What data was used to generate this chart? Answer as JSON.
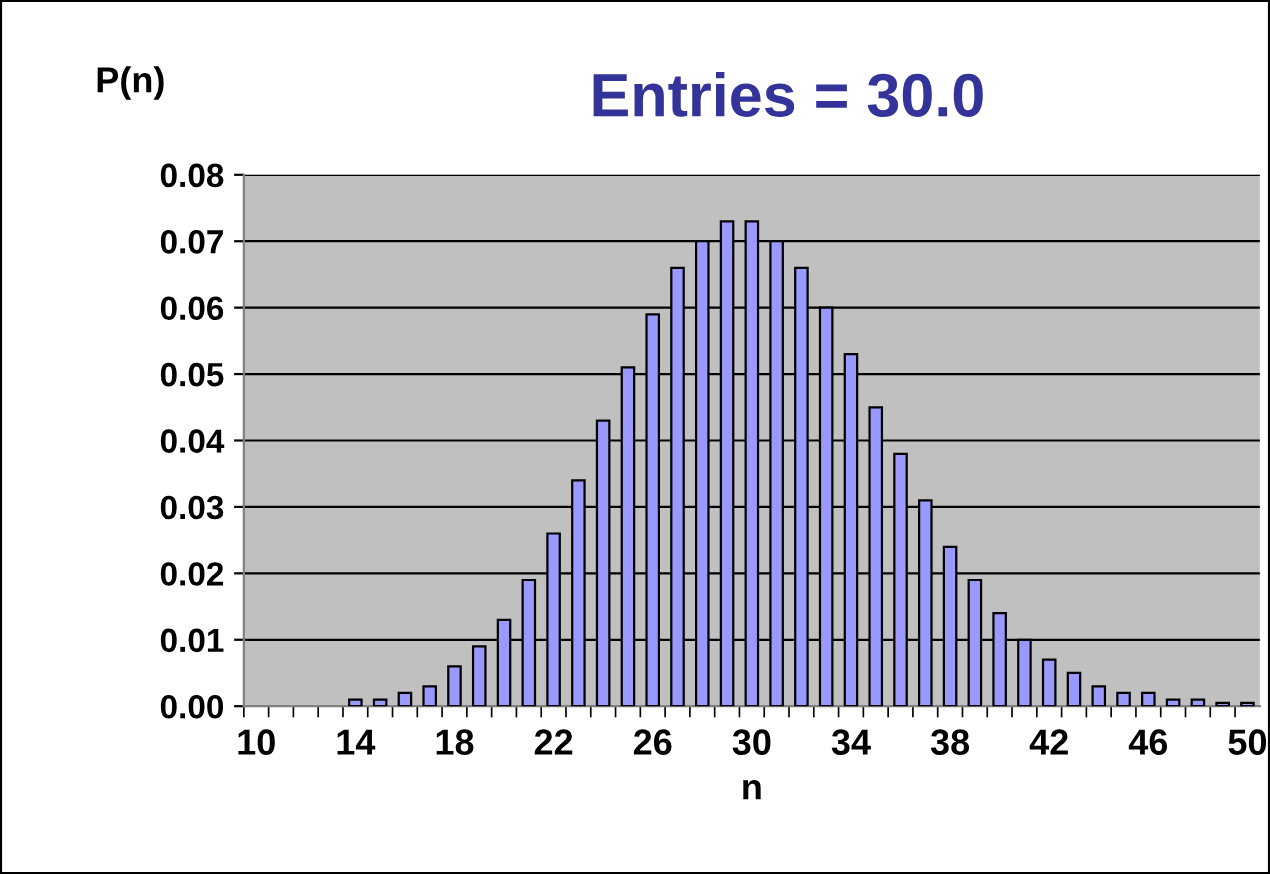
{
  "chart_data": {
    "type": "bar",
    "title": "Entries = 30.0",
    "xlabel": "n",
    "ylabel": "P(n)",
    "categories": [
      "10",
      null,
      null,
      null,
      "14",
      null,
      null,
      null,
      "18",
      null,
      null,
      null,
      "22",
      null,
      null,
      null,
      "26",
      null,
      null,
      null,
      "30",
      null,
      null,
      null,
      "34",
      null,
      null,
      null,
      "38",
      null,
      null,
      null,
      "42",
      null,
      null,
      null,
      "46",
      null,
      null,
      null,
      "50"
    ],
    "values": [
      null,
      null,
      null,
      null,
      0.001,
      0.001,
      0.002,
      0.003,
      0.006,
      0.009,
      0.013,
      0.019,
      0.026,
      0.034,
      0.043,
      0.051,
      0.059,
      0.066,
      0.07,
      0.073,
      0.073,
      0.07,
      0.066,
      0.06,
      0.053,
      0.045,
      0.038,
      0.031,
      0.024,
      0.019,
      0.014,
      0.01,
      0.007,
      0.005,
      0.003,
      0.002,
      0.002,
      0.001,
      0.001,
      0.0005,
      0.0005
    ],
    "color": "#9999ff",
    "ylim": [
      0,
      0.08
    ],
    "yticks": [
      {
        "value": 0,
        "label": "0.00"
      },
      {
        "value": 0.01,
        "label": "0.01"
      },
      {
        "value": 0.02,
        "label": "0.02"
      },
      {
        "value": 0.03,
        "label": "0.03"
      },
      {
        "value": 0.04,
        "label": "0.04"
      },
      {
        "value": 0.05,
        "label": "0.05"
      },
      {
        "value": 0.06,
        "label": "0.06"
      },
      {
        "value": 0.07,
        "label": "0.07"
      },
      {
        "value": 0.08,
        "label": "0.08"
      }
    ],
    "grid": "y",
    "legend": false
  }
}
